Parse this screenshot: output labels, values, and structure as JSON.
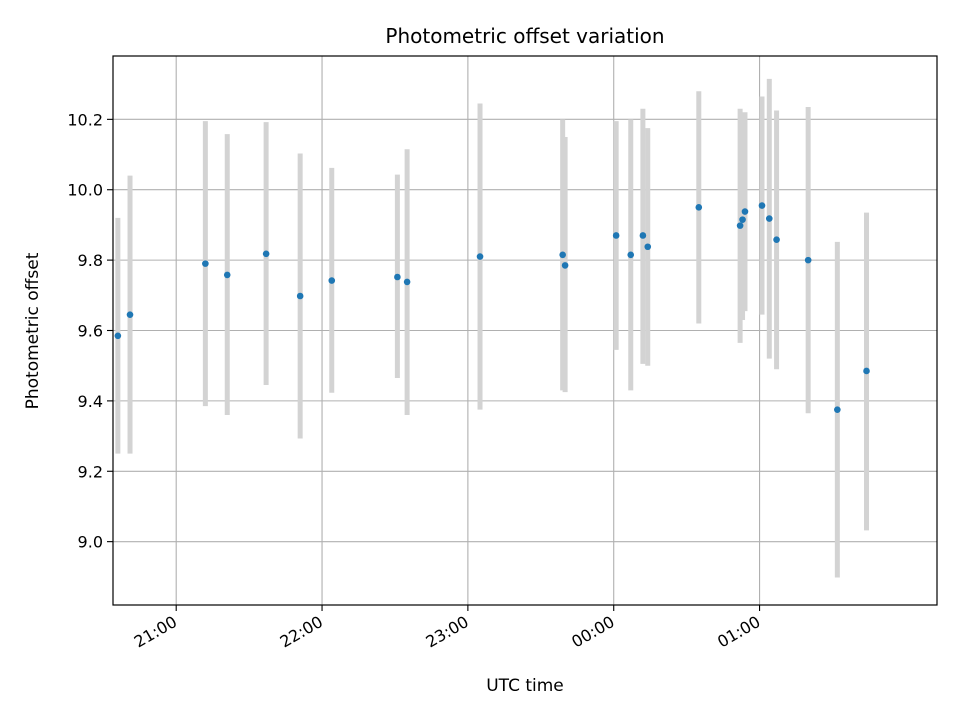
{
  "chart_data": {
    "type": "scatter",
    "title": "Photometric offset variation",
    "xlabel": "UTC time",
    "ylabel": "Photometric offset",
    "x_unit": "UTC hh:mm (after 24:00 = next day)",
    "xlim": [
      "20:34",
      "02:13"
    ],
    "ylim": [
      8.82,
      10.38
    ],
    "x_ticks": [
      {
        "time": "21:00",
        "label": "21:00"
      },
      {
        "time": "22:00",
        "label": "22:00"
      },
      {
        "time": "23:00",
        "label": "23:00"
      },
      {
        "time": "24:00",
        "label": "00:00"
      },
      {
        "time": "25:00",
        "label": "01:00"
      }
    ],
    "y_ticks": [
      9.0,
      9.2,
      9.4,
      9.6,
      9.8,
      10.0,
      10.2
    ],
    "grid": true,
    "colors": {
      "point": "#1f77b4",
      "errorbar": "#d3d3d3",
      "grid": "#b0b0b0"
    },
    "points": [
      {
        "time": "20:36",
        "y": 9.585,
        "lo": 9.25,
        "hi": 9.92
      },
      {
        "time": "20:41",
        "y": 9.645,
        "lo": 9.25,
        "hi": 10.04
      },
      {
        "time": "21:12",
        "y": 9.79,
        "lo": 9.385,
        "hi": 10.195
      },
      {
        "time": "21:21",
        "y": 9.758,
        "lo": 9.36,
        "hi": 10.158
      },
      {
        "time": "21:37",
        "y": 9.818,
        "lo": 9.445,
        "hi": 10.192
      },
      {
        "time": "21:51",
        "y": 9.698,
        "lo": 9.293,
        "hi": 10.103
      },
      {
        "time": "22:04",
        "y": 9.742,
        "lo": 9.423,
        "hi": 10.062
      },
      {
        "time": "22:31",
        "y": 9.752,
        "lo": 9.465,
        "hi": 10.043
      },
      {
        "time": "22:35",
        "y": 9.738,
        "lo": 9.36,
        "hi": 10.115
      },
      {
        "time": "23:05",
        "y": 9.81,
        "lo": 9.375,
        "hi": 10.245
      },
      {
        "time": "23:39",
        "y": 9.815,
        "lo": 9.43,
        "hi": 10.2
      },
      {
        "time": "23:40",
        "y": 9.785,
        "lo": 9.425,
        "hi": 10.15
      },
      {
        "time": "24:01",
        "y": 9.87,
        "lo": 9.545,
        "hi": 10.195
      },
      {
        "time": "24:07",
        "y": 9.815,
        "lo": 9.43,
        "hi": 10.2
      },
      {
        "time": "24:12",
        "y": 9.87,
        "lo": 9.505,
        "hi": 10.23
      },
      {
        "time": "24:14",
        "y": 9.838,
        "lo": 9.5,
        "hi": 10.175
      },
      {
        "time": "24:35",
        "y": 9.95,
        "lo": 9.62,
        "hi": 10.28
      },
      {
        "time": "24:52",
        "y": 9.898,
        "lo": 9.565,
        "hi": 10.23
      },
      {
        "time": "24:53",
        "y": 9.915,
        "lo": 9.63,
        "hi": 10.2
      },
      {
        "time": "24:54",
        "y": 9.938,
        "lo": 9.655,
        "hi": 10.22
      },
      {
        "time": "25:01",
        "y": 9.955,
        "lo": 9.645,
        "hi": 10.265
      },
      {
        "time": "25:04",
        "y": 9.918,
        "lo": 9.52,
        "hi": 10.315
      },
      {
        "time": "25:07",
        "y": 9.858,
        "lo": 9.49,
        "hi": 10.225
      },
      {
        "time": "25:20",
        "y": 9.8,
        "lo": 9.365,
        "hi": 10.235
      },
      {
        "time": "25:32",
        "y": 9.375,
        "lo": 8.898,
        "hi": 9.852
      },
      {
        "time": "25:44",
        "y": 9.485,
        "lo": 9.032,
        "hi": 9.935
      }
    ]
  }
}
